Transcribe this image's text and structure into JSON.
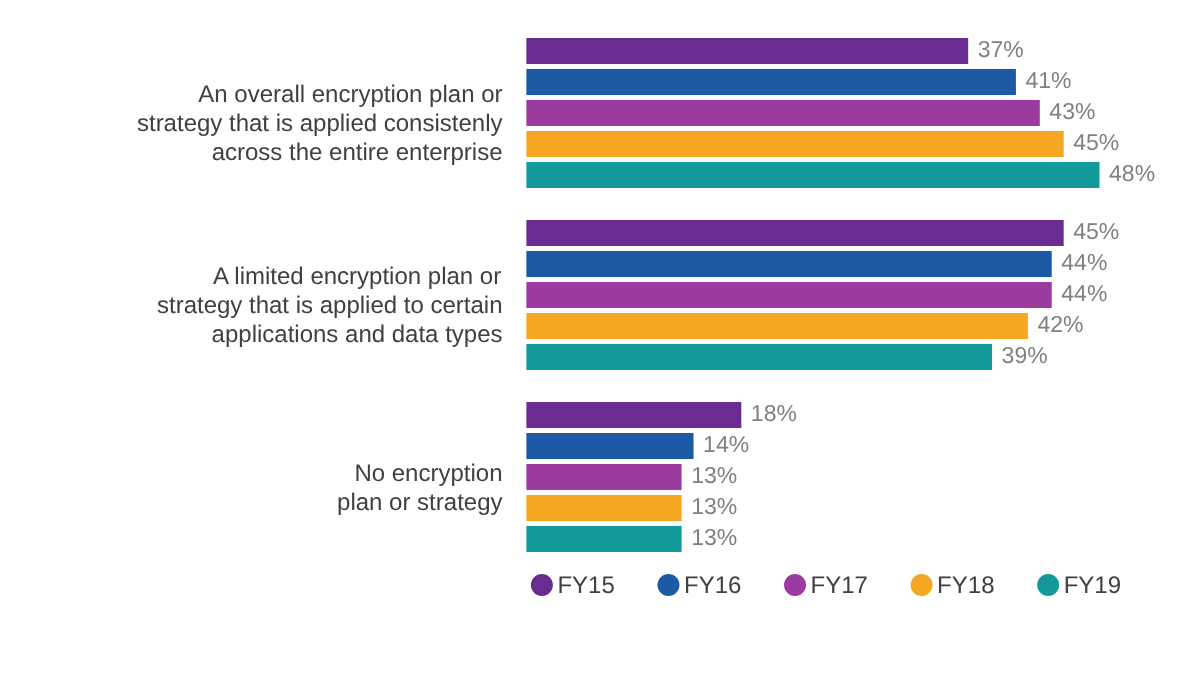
{
  "chart_data": {
    "type": "bar",
    "orientation": "horizontal",
    "categories": [
      "An overall encryption plan or\nstrategy that is applied consistenly\nacross the entire enterprise",
      "A limited encryption plan or\nstrategy that is applied to certain\napplications and data types",
      "No encryption\nplan or strategy"
    ],
    "series": [
      {
        "name": "FY15",
        "color": "#6a2c91",
        "values": [
          37,
          45,
          18
        ],
        "value_labels": [
          "37%",
          "45%",
          "18%"
        ]
      },
      {
        "name": "FY16",
        "color": "#1c5aa6",
        "values": [
          41,
          44,
          14
        ],
        "value_labels": [
          "41%",
          "44%",
          "14%"
        ]
      },
      {
        "name": "FY17",
        "color": "#9c3b9f",
        "values": [
          43,
          44,
          13
        ],
        "value_labels": [
          "43%",
          "44%",
          "13%"
        ]
      },
      {
        "name": "FY18",
        "color": "#f5a623",
        "values": [
          45,
          42,
          13
        ],
        "value_labels": [
          "45%",
          "42%",
          "13%"
        ]
      },
      {
        "name": "FY19",
        "color": "#14999a",
        "values": [
          48,
          39,
          13
        ],
        "value_labels": [
          "48%",
          "39%",
          "13%"
        ]
      }
    ],
    "legend": "bottom",
    "grid": false
  }
}
